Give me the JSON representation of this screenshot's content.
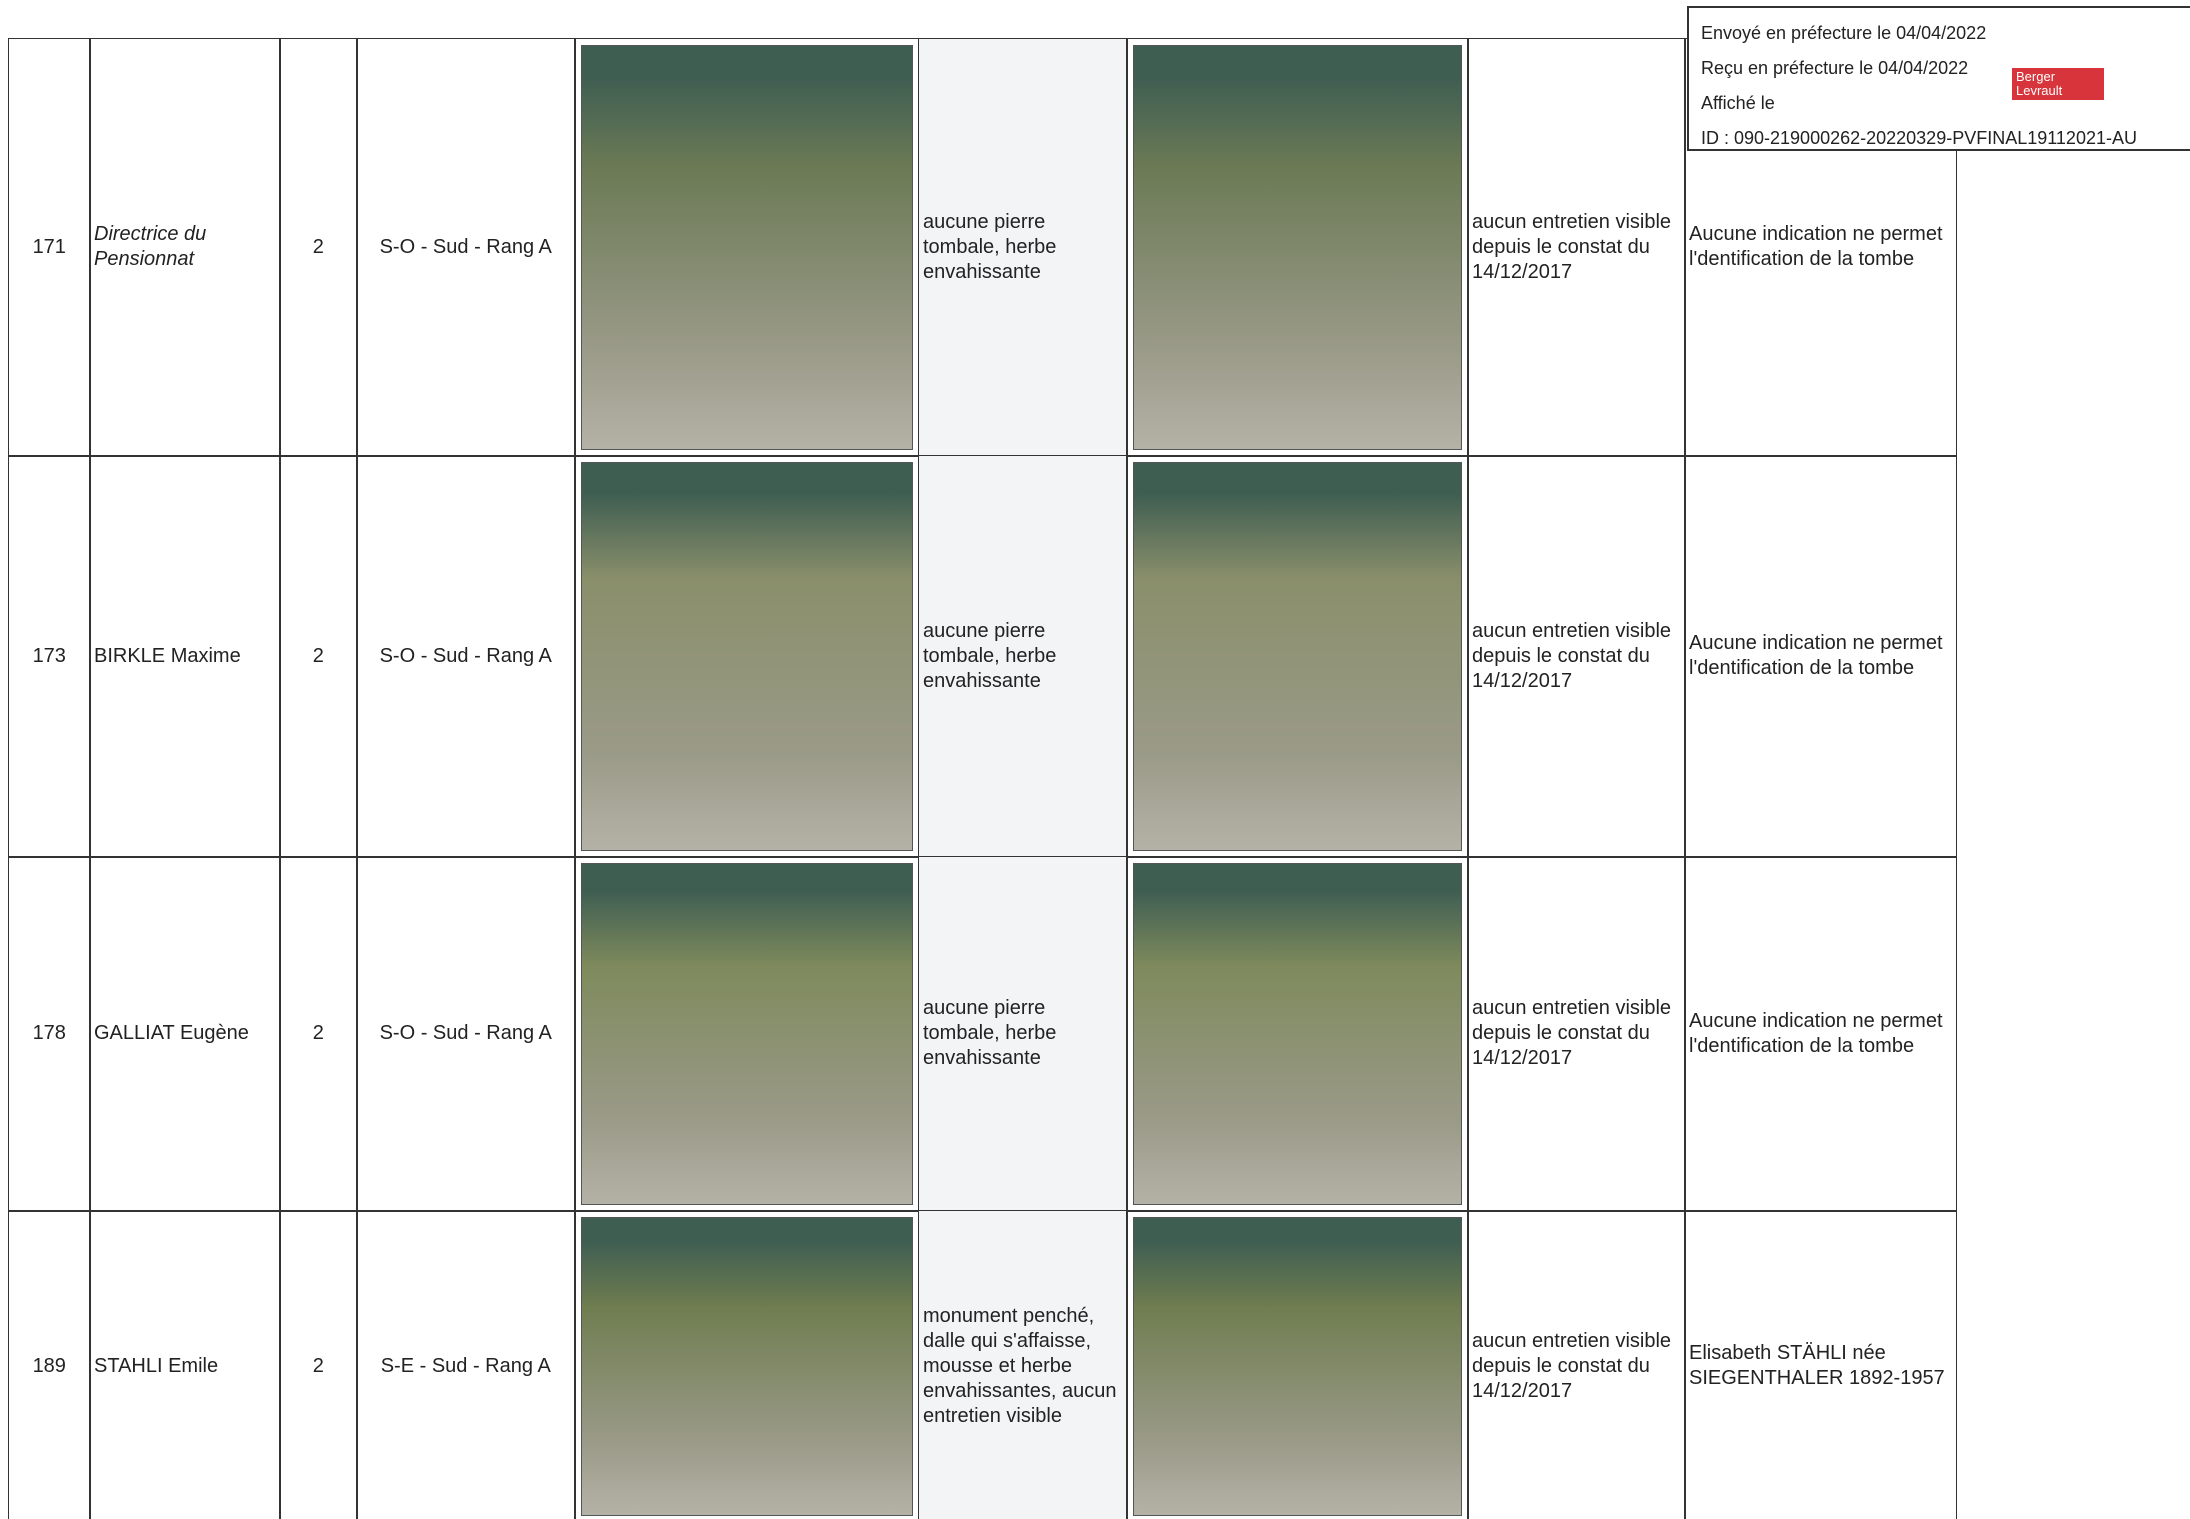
{
  "stamp": {
    "sent": "Envoyé en préfecture le 04/04/2022",
    "received": "Reçu en préfecture le 04/04/2022",
    "posted": "Affiché le",
    "id": "ID : 090-219000262-20220329-PVFINAL19112021-AU",
    "logo": "Berger Levrault"
  },
  "table": {
    "rows": [
      {
        "number": "171",
        "name": "Directrice du Pensionnat",
        "level": "2",
        "location": "S-O - Sud - Rang A",
        "observation": "aucune pierre tombale, herbe envahissante",
        "maintenance": "aucun entretien visible depuis le constat du 14/12/2017",
        "remark": "Aucune indication ne permet l'dentification de la tombe"
      },
      {
        "number": "173",
        "name": "BIRKLE Maxime",
        "level": "2",
        "location": "S-O - Sud - Rang A",
        "observation": "aucune pierre tombale, herbe envahissante",
        "maintenance": "aucun entretien visible depuis le constat du 14/12/2017",
        "remark": "Aucune indication ne permet l'dentification de la tombe"
      },
      {
        "number": "178",
        "name": "GALLIAT Eugène",
        "level": "2",
        "location": "S-O - Sud - Rang A",
        "observation": "aucune pierre tombale, herbe envahissante",
        "maintenance": "aucun entretien visible depuis le constat du 14/12/2017",
        "remark": "Aucune indication ne permet l'dentification de la tombe"
      },
      {
        "number": "189",
        "name": "STAHLI Emile",
        "level": "2",
        "location": "S-E - Sud - Rang A",
        "observation": "monument penché, dalle qui s'affaisse, mousse et herbe envahissantes, aucun entretien visible",
        "maintenance": "aucun entretien visible depuis le constat du 14/12/2017",
        "remark": "Elisabeth STÄHLI née SIEGENTHALER 1892-1957"
      }
    ]
  }
}
